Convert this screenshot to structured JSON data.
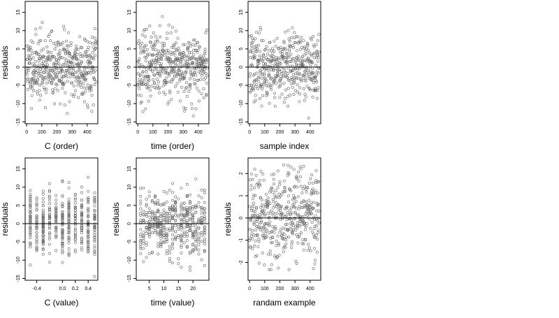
{
  "chart_data": [
    {
      "type": "scatter",
      "title": "",
      "xlabel": "C (order)",
      "ylabel": "residuals",
      "xlim": [
        -10,
        470
      ],
      "ylim": [
        -15.5,
        18
      ],
      "xticks": [
        0,
        100,
        200,
        300,
        400
      ],
      "yticks": [
        -15,
        -10,
        -5,
        0,
        5,
        10,
        15
      ],
      "reference_line_y": 0,
      "x_pattern": "index",
      "n": 460,
      "y_sd": 4.5,
      "seed": 11
    },
    {
      "type": "scatter",
      "title": "",
      "xlabel": "time (order)",
      "ylabel": "residuals",
      "xlim": [
        -10,
        470
      ],
      "ylim": [
        -15.5,
        18
      ],
      "xticks": [
        0,
        100,
        200,
        300,
        400
      ],
      "yticks": [
        -15,
        -10,
        -5,
        0,
        5,
        10,
        15
      ],
      "reference_line_y": 0,
      "x_pattern": "index",
      "n": 460,
      "y_sd": 4.5,
      "seed": 23
    },
    {
      "type": "scatter",
      "title": "",
      "xlabel": "sample index",
      "ylabel": "residuals",
      "xlim": [
        -10,
        470
      ],
      "ylim": [
        -15.5,
        18
      ],
      "xticks": [
        0,
        100,
        200,
        300,
        400
      ],
      "yticks": [
        -15,
        -10,
        -5,
        0,
        5,
        10,
        15
      ],
      "reference_line_y": 0,
      "x_pattern": "index",
      "n": 460,
      "y_sd": 4.5,
      "seed": 37
    },
    {
      "type": "scatter",
      "title": "",
      "xlabel": "C (value)",
      "ylabel": "residuals",
      "xlim": [
        -0.58,
        0.55
      ],
      "ylim": [
        -15.5,
        18
      ],
      "xticks": [
        -0.4,
        0.0,
        0.2,
        0.4
      ],
      "xtick_labels": [
        "-0.4",
        "0.0",
        "0.2",
        "0.4"
      ],
      "yticks": [
        -15,
        -10,
        -5,
        0,
        5,
        10,
        15
      ],
      "reference_line_y": 0,
      "x_pattern": "levels",
      "x_levels": [
        -0.5,
        -0.4,
        -0.3,
        -0.2,
        -0.1,
        0.0,
        0.1,
        0.2,
        0.3,
        0.4,
        0.5
      ],
      "n": 460,
      "y_sd": 4.5,
      "seed": 41
    },
    {
      "type": "scatter",
      "title": "",
      "xlabel": "time (value)",
      "ylabel": "residuals",
      "xlim": [
        0.5,
        25.5
      ],
      "ylim": [
        -15.5,
        18
      ],
      "xticks": [
        5,
        10,
        15,
        20
      ],
      "yticks": [
        -15,
        -10,
        -5,
        0,
        5,
        10,
        15
      ],
      "reference_line_y": 0,
      "x_pattern": "levels",
      "x_levels": [
        2,
        3,
        4,
        5,
        6,
        7,
        8,
        9,
        10,
        11,
        12,
        13,
        14,
        15,
        16,
        17,
        18,
        19,
        20,
        21,
        22,
        23,
        24
      ],
      "n": 460,
      "y_sd": 4.5,
      "seed": 53
    },
    {
      "type": "scatter",
      "title": "",
      "xlabel": "randam example",
      "ylabel": "residuals",
      "xlim": [
        -10,
        470
      ],
      "ylim": [
        -2.8,
        2.7
      ],
      "xticks": [
        0,
        100,
        200,
        300,
        400
      ],
      "yticks": [
        -2,
        -1,
        0,
        1,
        2
      ],
      "reference_line_y": 0,
      "x_pattern": "index",
      "n": 460,
      "y_sd": 1.0,
      "seed": 67
    }
  ]
}
